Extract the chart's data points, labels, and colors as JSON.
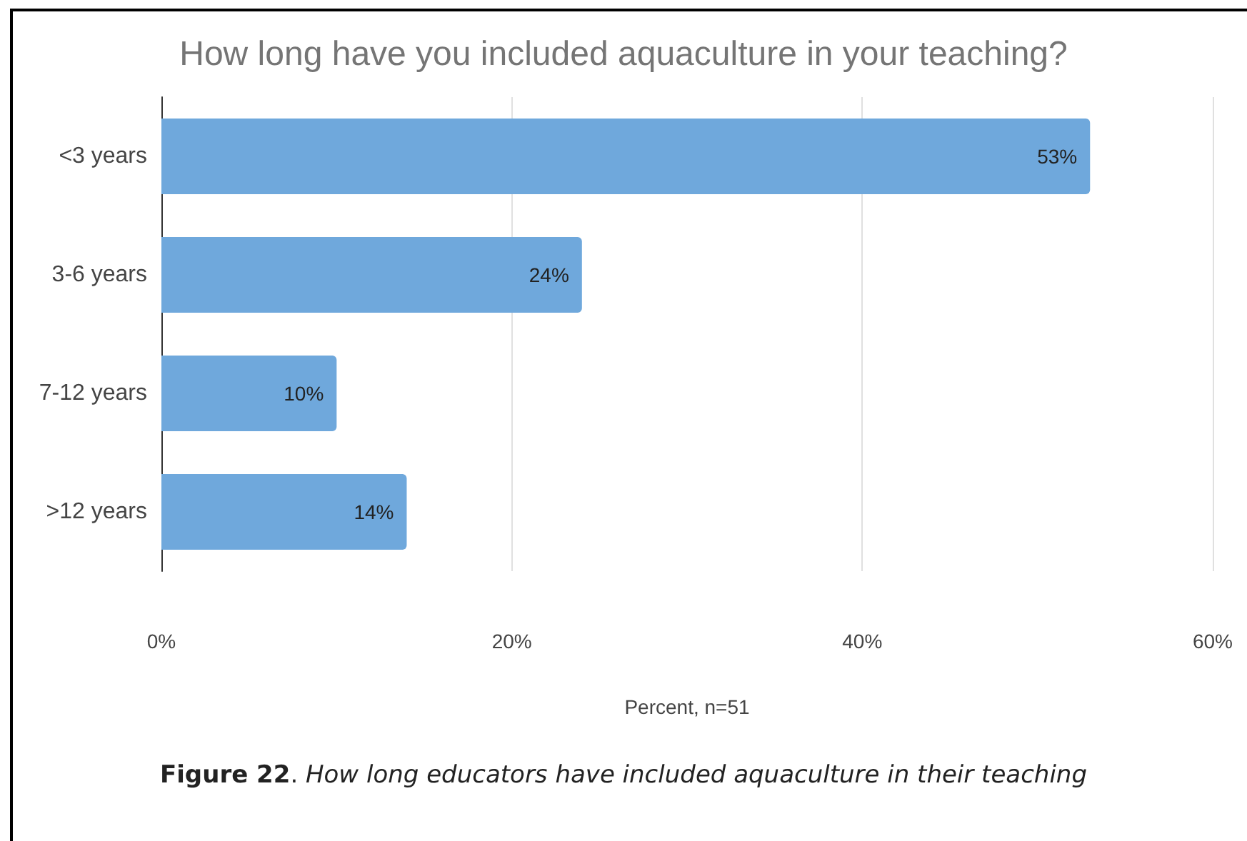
{
  "chart_data": {
    "type": "bar",
    "orientation": "horizontal",
    "title": "How long have you included aquaculture in your teaching?",
    "categories": [
      "<3 years",
      "3-6 years",
      "7-12 years",
      ">12 years"
    ],
    "values": [
      53,
      24,
      10,
      14
    ],
    "color": "#6fa8dc",
    "value_labels": [
      "53%",
      "24%",
      "10%",
      "14%"
    ],
    "xlim": [
      0,
      60
    ],
    "xticks": [
      {
        "value": 0,
        "label": "0%"
      },
      {
        "value": 20,
        "label": "20%"
      },
      {
        "value": 40,
        "label": "40%"
      },
      {
        "value": 60,
        "label": "60%"
      }
    ],
    "xlabel": "Percent, n=51",
    "grid": "x",
    "annotations": [
      "Figure 22. How long educators have included aquaculture in their teaching"
    ]
  }
}
